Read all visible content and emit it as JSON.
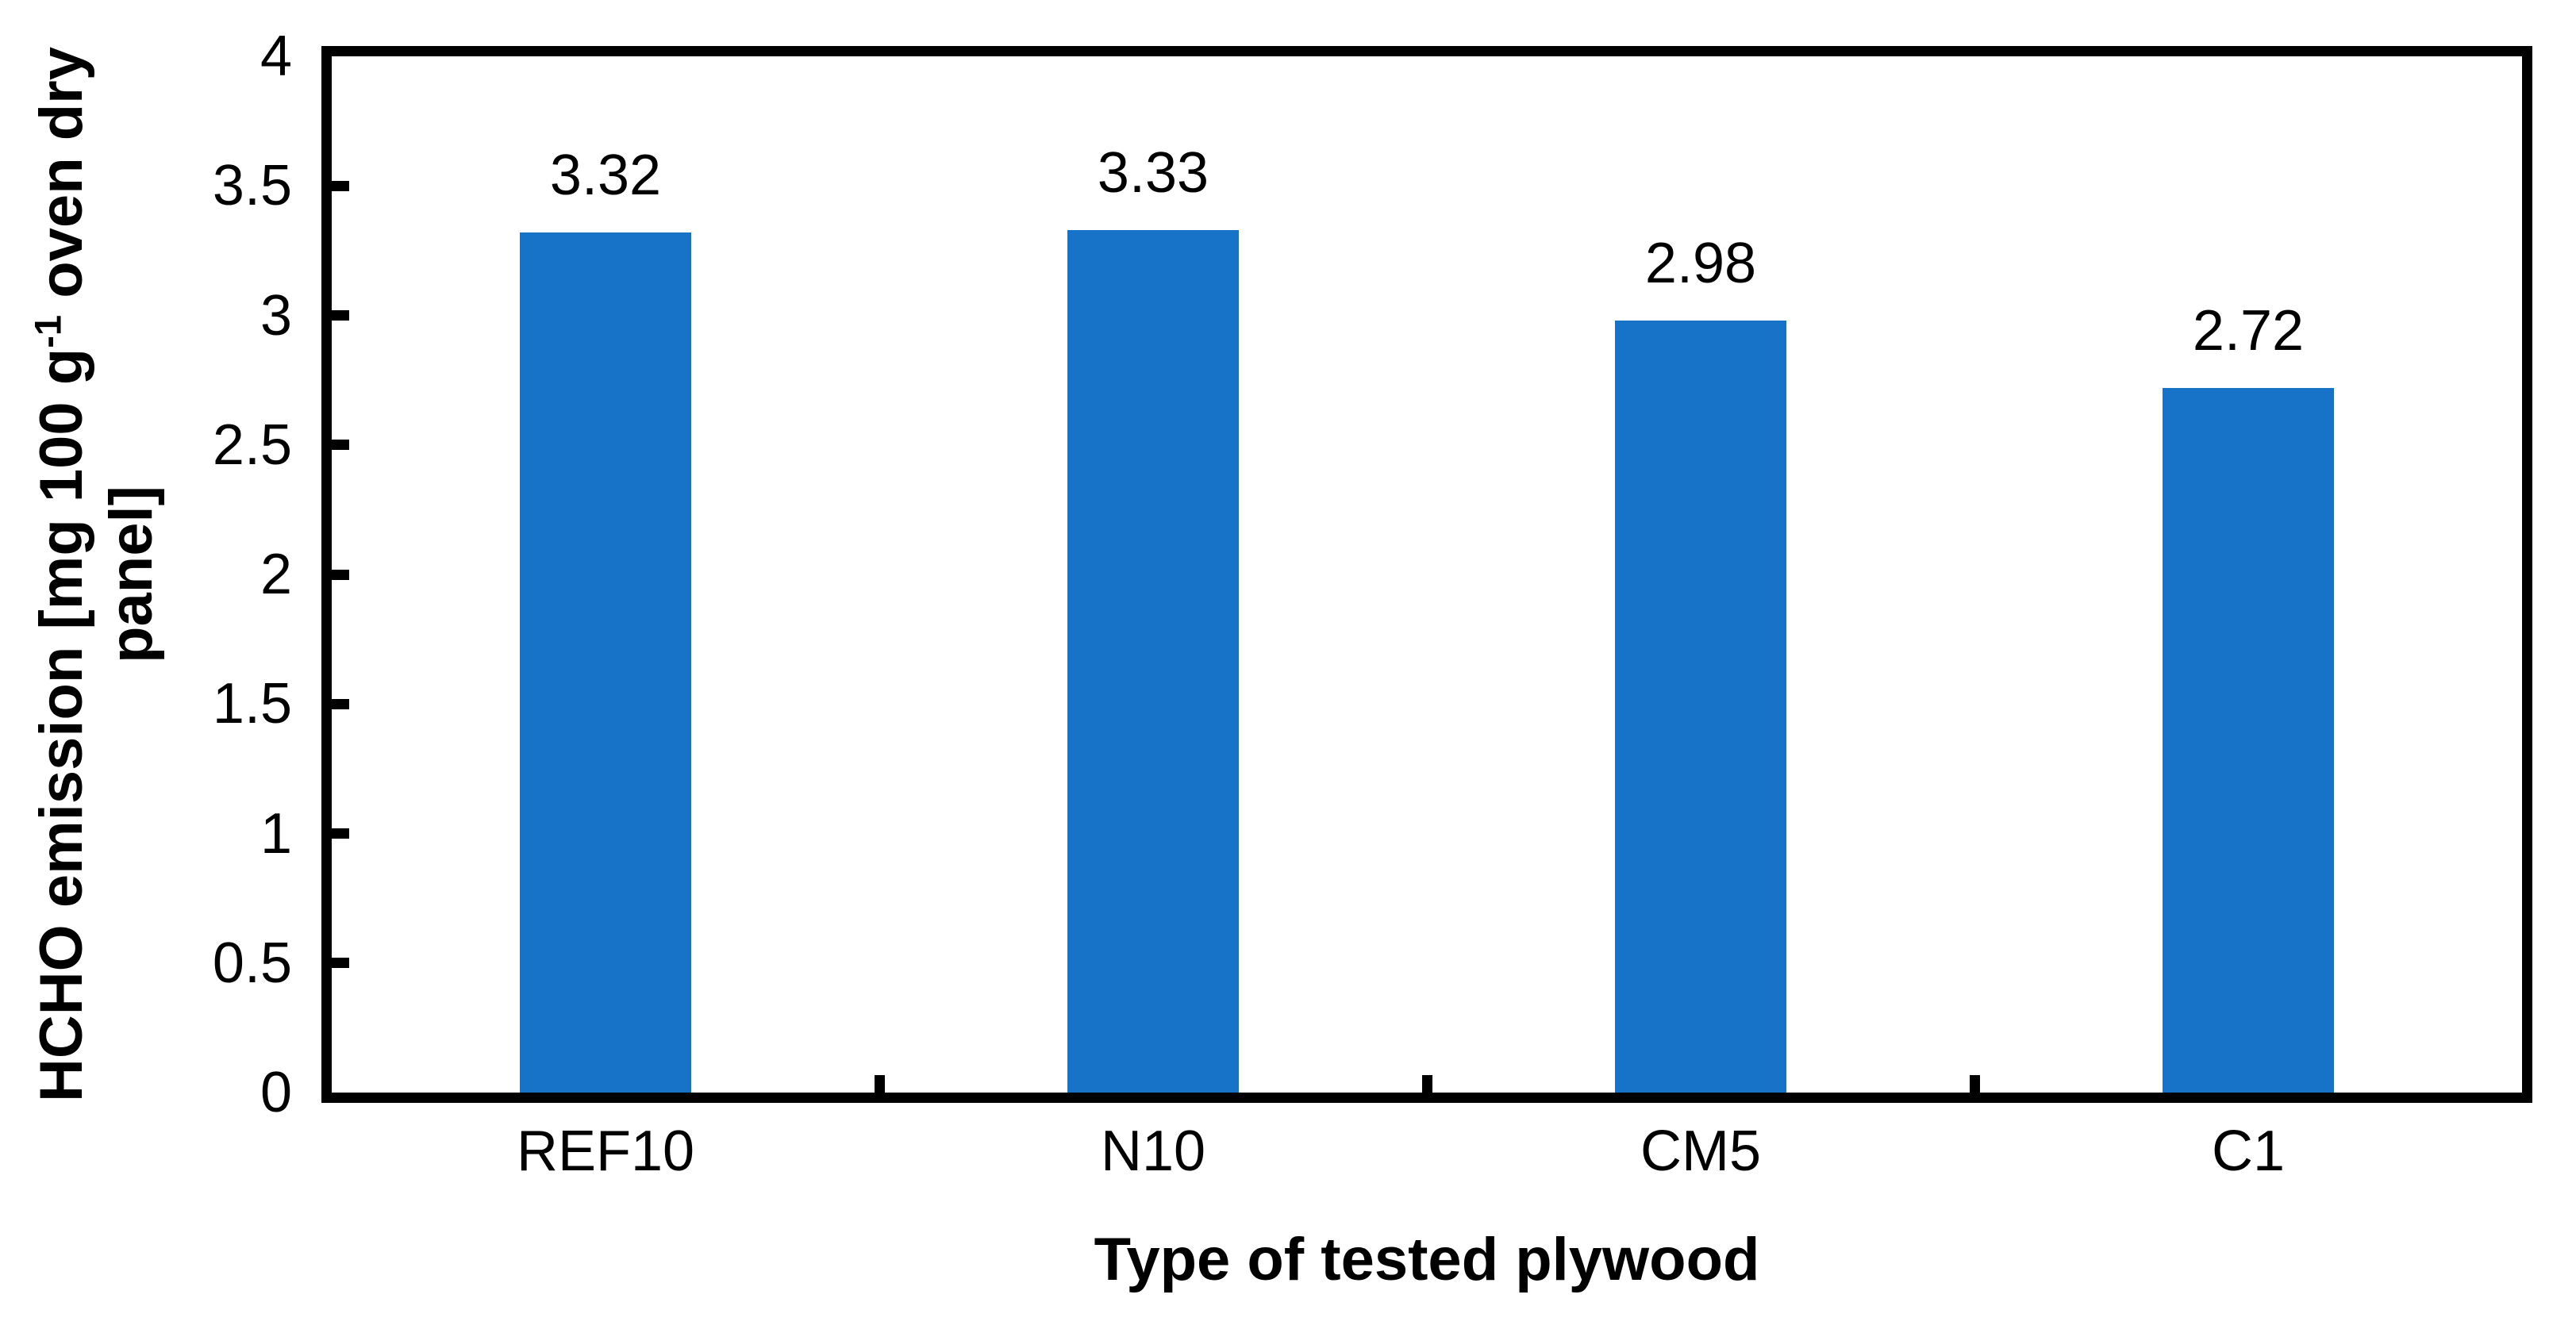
{
  "figure": {
    "background": "#FFFFFF",
    "y_axis": {
      "title": {
        "prefix": "HCHO emission [mg 100 g",
        "superscript": "-1",
        "suffix": " oven dry",
        "line2": "panel]"
      },
      "tick_labels": [
        "0",
        "0.5",
        "1",
        "1.5",
        "2",
        "2.5",
        "3",
        "3.5",
        "4"
      ]
    },
    "x_axis": {
      "title": "Type of tested plywood"
    }
  },
  "chart_data": {
    "type": "bar",
    "title": "",
    "categories": [
      "REF10",
      "N10",
      "CM5",
      "C1"
    ],
    "values": [
      3.32,
      3.33,
      2.98,
      2.72
    ],
    "data_labels": [
      "3.32",
      "3.33",
      "2.98",
      "2.72"
    ],
    "xlabel": "Type of tested plywood",
    "ylabel": "HCHO emission [mg 100 g⁻¹ oven dry panel]",
    "ylim": [
      0,
      4
    ],
    "ytick_step": 0.5,
    "grid": false,
    "legend": false,
    "bar_color": "#1773C8",
    "axis_color": "#000000",
    "tick_style": "inside"
  }
}
